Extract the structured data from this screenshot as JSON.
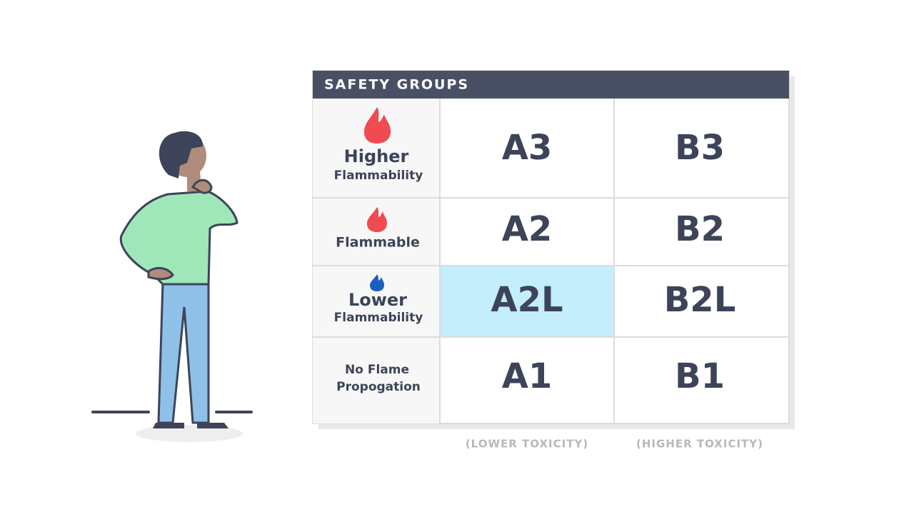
{
  "header": {
    "title": "SAFETY GROUPS"
  },
  "rows": [
    {
      "label": [
        "Higher",
        "Flammability"
      ],
      "cells": [
        "A3",
        "B3"
      ]
    },
    {
      "label": [
        "Flammable"
      ],
      "cells": [
        "A2",
        "B2"
      ]
    },
    {
      "label": [
        "Lower",
        "Flammability"
      ],
      "cells": [
        "A2L",
        "B2L"
      ]
    },
    {
      "label": [
        "No Flame",
        "Propogation"
      ],
      "cells": [
        "A1",
        "B1"
      ]
    }
  ],
  "columns": [
    "(LOWER TOXICITY)",
    "(HIGHER TOXICITY)"
  ]
}
